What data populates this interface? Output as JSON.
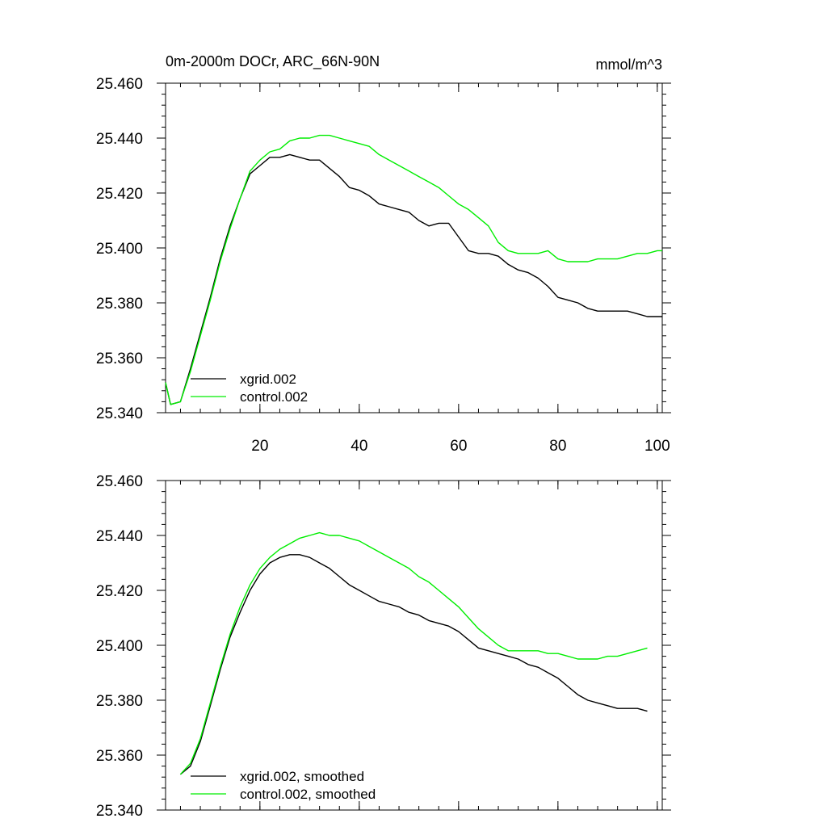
{
  "chart_data": [
    {
      "type": "line",
      "title": "0m-2000m DOCr, ARC_66N-90N",
      "units": "mmol/m^3",
      "xlim": [
        1,
        101
      ],
      "ylim": [
        25.34,
        25.46
      ],
      "xticks": [
        20,
        40,
        60,
        80,
        100
      ],
      "xtick_labels": [
        "20",
        "40",
        "60",
        "80",
        "100"
      ],
      "yticks": [
        25.34,
        25.36,
        25.38,
        25.4,
        25.42,
        25.44,
        25.46
      ],
      "ytick_labels": [
        "25.340",
        "25.360",
        "25.380",
        "25.400",
        "25.420",
        "25.440",
        "25.460"
      ],
      "legend_position": "bottom-left",
      "series": [
        {
          "name": "xgrid.002",
          "color": "#000000",
          "x": [
            1,
            2,
            4,
            6,
            8,
            10,
            12,
            14,
            16,
            18,
            20,
            22,
            24,
            26,
            28,
            30,
            32,
            34,
            36,
            38,
            40,
            42,
            44,
            46,
            48,
            50,
            52,
            54,
            56,
            58,
            60,
            62,
            64,
            66,
            68,
            70,
            72,
            74,
            76,
            78,
            80,
            82,
            84,
            86,
            88,
            90,
            92,
            94,
            96,
            98,
            100,
            101
          ],
          "values": [
            25.351,
            25.343,
            25.344,
            25.356,
            25.369,
            25.382,
            25.396,
            25.408,
            25.418,
            25.427,
            25.43,
            25.433,
            25.433,
            25.434,
            25.433,
            25.432,
            25.432,
            25.429,
            25.426,
            25.422,
            25.421,
            25.419,
            25.416,
            25.415,
            25.414,
            25.413,
            25.41,
            25.408,
            25.409,
            25.409,
            25.404,
            25.399,
            25.398,
            25.398,
            25.397,
            25.394,
            25.392,
            25.391,
            25.389,
            25.386,
            25.382,
            25.381,
            25.38,
            25.378,
            25.377,
            25.377,
            25.377,
            25.377,
            25.376,
            25.375,
            25.375,
            25.375
          ]
        },
        {
          "name": "control.002",
          "color": "#00ee00",
          "x": [
            1,
            2,
            4,
            6,
            8,
            10,
            12,
            14,
            16,
            18,
            20,
            22,
            24,
            26,
            28,
            30,
            32,
            34,
            36,
            38,
            40,
            42,
            44,
            46,
            48,
            50,
            52,
            54,
            56,
            58,
            60,
            62,
            64,
            66,
            68,
            70,
            72,
            74,
            76,
            78,
            80,
            82,
            84,
            86,
            88,
            90,
            92,
            94,
            96,
            98,
            100,
            101
          ],
          "values": [
            25.351,
            25.343,
            25.344,
            25.355,
            25.368,
            25.381,
            25.395,
            25.407,
            25.418,
            25.428,
            25.432,
            25.435,
            25.436,
            25.439,
            25.44,
            25.44,
            25.441,
            25.441,
            25.44,
            25.439,
            25.438,
            25.437,
            25.434,
            25.432,
            25.43,
            25.428,
            25.426,
            25.424,
            25.422,
            25.419,
            25.416,
            25.414,
            25.411,
            25.408,
            25.402,
            25.399,
            25.398,
            25.398,
            25.398,
            25.399,
            25.396,
            25.395,
            25.395,
            25.395,
            25.396,
            25.396,
            25.396,
            25.397,
            25.398,
            25.398,
            25.399,
            25.399
          ]
        }
      ]
    },
    {
      "type": "line",
      "title": "",
      "units": "",
      "xlim": [
        1,
        101
      ],
      "ylim": [
        25.34,
        25.46
      ],
      "xticks": [
        20,
        40,
        60,
        80,
        100
      ],
      "xtick_labels": [],
      "yticks": [
        25.34,
        25.36,
        25.38,
        25.4,
        25.42,
        25.44,
        25.46
      ],
      "ytick_labels": [
        "25.340",
        "25.360",
        "25.380",
        "25.400",
        "25.420",
        "25.440",
        "25.460"
      ],
      "legend_position": "bottom-left",
      "series": [
        {
          "name": "xgrid.002, smoothed",
          "color": "#000000",
          "x": [
            4,
            6,
            8,
            10,
            12,
            14,
            16,
            18,
            20,
            22,
            24,
            26,
            28,
            30,
            32,
            34,
            36,
            38,
            40,
            42,
            44,
            46,
            48,
            50,
            52,
            54,
            56,
            58,
            60,
            62,
            64,
            66,
            68,
            70,
            72,
            74,
            76,
            78,
            80,
            82,
            84,
            86,
            88,
            90,
            92,
            94,
            96,
            98
          ],
          "values": [
            25.353,
            25.356,
            25.365,
            25.378,
            25.391,
            25.403,
            25.412,
            25.42,
            25.426,
            25.43,
            25.432,
            25.433,
            25.433,
            25.432,
            25.43,
            25.428,
            25.425,
            25.422,
            25.42,
            25.418,
            25.416,
            25.415,
            25.414,
            25.412,
            25.411,
            25.409,
            25.408,
            25.407,
            25.405,
            25.402,
            25.399,
            25.398,
            25.397,
            25.396,
            25.395,
            25.393,
            25.392,
            25.39,
            25.388,
            25.385,
            25.382,
            25.38,
            25.379,
            25.378,
            25.377,
            25.377,
            25.377,
            25.376
          ]
        },
        {
          "name": "control.002, smoothed",
          "color": "#00ee00",
          "x": [
            4,
            6,
            8,
            10,
            12,
            14,
            16,
            18,
            20,
            22,
            24,
            26,
            28,
            30,
            32,
            34,
            36,
            38,
            40,
            42,
            44,
            46,
            48,
            50,
            52,
            54,
            56,
            58,
            60,
            62,
            64,
            66,
            68,
            70,
            72,
            74,
            76,
            78,
            80,
            82,
            84,
            86,
            88,
            90,
            92,
            94,
            96,
            98
          ],
          "values": [
            25.353,
            25.357,
            25.366,
            25.379,
            25.392,
            25.404,
            25.414,
            25.422,
            25.428,
            25.432,
            25.435,
            25.437,
            25.439,
            25.44,
            25.441,
            25.44,
            25.44,
            25.439,
            25.438,
            25.436,
            25.434,
            25.432,
            25.43,
            25.428,
            25.425,
            25.423,
            25.42,
            25.417,
            25.414,
            25.41,
            25.406,
            25.403,
            25.4,
            25.398,
            25.398,
            25.398,
            25.398,
            25.397,
            25.397,
            25.396,
            25.395,
            25.395,
            25.395,
            25.396,
            25.396,
            25.397,
            25.398,
            25.399
          ]
        }
      ]
    }
  ]
}
